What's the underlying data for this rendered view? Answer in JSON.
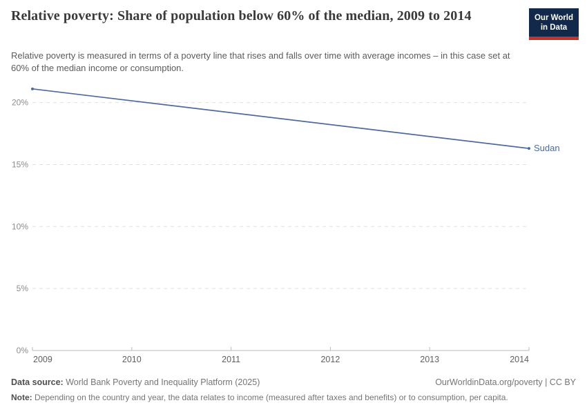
{
  "header": {
    "title": "Relative poverty: Share of population below 60% of the median, 2009 to 2014",
    "subtitle": "Relative poverty is measured in terms of a poverty line that rises and falls over time with average incomes – in this case set at 60% of the median income or consumption.",
    "logo": {
      "line1": "Our World",
      "line2": "in Data"
    }
  },
  "chart_data": {
    "type": "line",
    "series": [
      {
        "name": "Sudan",
        "x": [
          2009,
          2014
        ],
        "values": [
          21.1,
          16.3
        ],
        "color": "#4b6a9b"
      }
    ],
    "x_ticks": [
      2009,
      2010,
      2011,
      2012,
      2013,
      2014
    ],
    "y_ticks": [
      0,
      5,
      10,
      15,
      20
    ],
    "y_tick_suffix": "%",
    "xlim": [
      2009,
      2014
    ],
    "ylim": [
      0,
      22.2
    ],
    "grid": "horizontal-dashed",
    "legend": "end-of-line-label",
    "xlabel": "",
    "ylabel": ""
  },
  "colors": {
    "series_blue": "#4b6a9b",
    "grid": "#e0e0e0",
    "axis": "#b8b8b8",
    "y_tick_text": "#8c8c8c",
    "x_tick_text": "#606060",
    "brand_navy": "#12294b",
    "brand_red": "#c0342c"
  },
  "footer": {
    "datasource_label": "Data source:",
    "datasource_value": "World Bank Poverty and Inequality Platform (2025)",
    "rights": "OurWorldinData.org/poverty | CC BY",
    "note_label": "Note:",
    "note_value": "Depending on the country and year, the data relates to income (measured after taxes and benefits) or to consumption, per capita."
  }
}
